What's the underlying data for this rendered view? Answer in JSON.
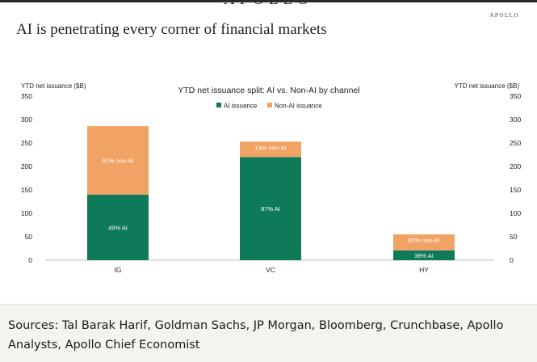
{
  "masthead": "APOLLO",
  "brand": "APOLLO",
  "headline": "AI is penetrating every corner of financial markets",
  "chart_data": {
    "type": "bar",
    "stacked": true,
    "title": "YTD net issuance split: AI vs. Non-AI by channel",
    "ylabel_left": "YTD net issuance ($B)",
    "ylabel_right": "YTD net issuance ($B)",
    "ylim": [
      0,
      350
    ],
    "yticks": [
      0,
      50,
      100,
      150,
      200,
      250,
      300,
      350
    ],
    "categories": [
      "IG",
      "VC",
      "HY"
    ],
    "legend_position": "top-center",
    "grid": false,
    "series": [
      {
        "name": "AI issuance",
        "color": "#0f7a5a",
        "values": [
          140,
          220,
          21
        ],
        "labels": [
          "49% AI",
          "87% AI",
          "38% AI"
        ]
      },
      {
        "name": "Non-AI issuance",
        "color": "#f0a365",
        "values": [
          146,
          33,
          34
        ],
        "labels": [
          "51% non-AI",
          "13% non-AI",
          "62% non-AI"
        ]
      }
    ]
  },
  "sources": "Sources: Tal Barak Harif, Goldman Sachs, JP Morgan, Bloomberg, Crunchbase, Apollo Analysts, Apollo Chief Economist"
}
